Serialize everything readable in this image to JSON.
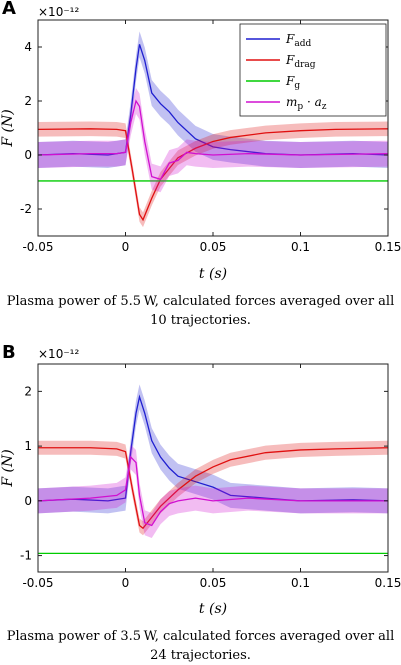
{
  "chart_data": [
    {
      "panel": "A",
      "type": "line",
      "xlabel": "t (s)",
      "ylabel": "F (N)",
      "y_multiplier": "×10⁻¹²",
      "xlim": [
        -0.05,
        0.15
      ],
      "ylim": [
        -3.0,
        5.0
      ],
      "x_ticks": [
        -0.05,
        0,
        0.05,
        0.1,
        0.15
      ],
      "x_tick_labels": [
        "-0.05",
        "0",
        "0.05",
        "0.1",
        "0.15"
      ],
      "y_ticks": [
        -2,
        0,
        2,
        4
      ],
      "y_tick_labels": [
        "-2",
        "0",
        "2",
        "4"
      ],
      "grid": false,
      "legend_position": "top-right",
      "caption": "Plasma power of 5.5 W, calculated forces averaged over all 10 trajectories.",
      "series": [
        {
          "name": "F_add",
          "color": "#1f1fd0",
          "x": [
            -0.05,
            -0.03,
            -0.01,
            0.0,
            0.003,
            0.006,
            0.008,
            0.011,
            0.015,
            0.02,
            0.025,
            0.03,
            0.035,
            0.04,
            0.05,
            0.06,
            0.08,
            0.1,
            0.13,
            0.15
          ],
          "y": [
            0.0,
            0.05,
            0.0,
            0.1,
            1.5,
            3.2,
            4.1,
            3.5,
            2.3,
            1.9,
            1.6,
            1.2,
            0.9,
            0.6,
            0.3,
            0.2,
            0.05,
            0.0,
            0.05,
            0.0
          ]
        },
        {
          "name": "F_drag",
          "color": "#e01010",
          "x": [
            -0.05,
            -0.02,
            -0.005,
            0.0,
            0.004,
            0.008,
            0.01,
            0.015,
            0.02,
            0.025,
            0.03,
            0.04,
            0.05,
            0.06,
            0.08,
            0.1,
            0.12,
            0.15
          ],
          "y": [
            0.95,
            0.97,
            0.95,
            0.9,
            -0.6,
            -2.2,
            -2.4,
            -1.6,
            -0.9,
            -0.5,
            -0.1,
            0.25,
            0.5,
            0.65,
            0.82,
            0.9,
            0.95,
            0.97
          ]
        },
        {
          "name": "F_g",
          "color": "#00cc00",
          "x": [
            -0.05,
            0.15
          ],
          "y": [
            -0.96,
            -0.96
          ]
        },
        {
          "name": "m_p · a_z",
          "color": "#d010d0",
          "x": [
            -0.05,
            -0.02,
            -0.005,
            0.0,
            0.003,
            0.006,
            0.008,
            0.011,
            0.015,
            0.02,
            0.025,
            0.03,
            0.035,
            0.04,
            0.05,
            0.07,
            0.1,
            0.15
          ],
          "y": [
            0.0,
            0.05,
            0.05,
            0.1,
            1.2,
            2.0,
            1.8,
            0.5,
            -0.8,
            -0.9,
            -0.3,
            -0.2,
            0.1,
            0.05,
            0.0,
            0.05,
            0.0,
            0.05
          ]
        }
      ]
    },
    {
      "panel": "B",
      "type": "line",
      "xlabel": "t (s)",
      "ylabel": "F (N)",
      "y_multiplier": "×10⁻¹²",
      "xlim": [
        -0.05,
        0.15
      ],
      "ylim": [
        -1.3,
        2.5
      ],
      "x_ticks": [
        -0.05,
        0,
        0.05,
        0.1,
        0.15
      ],
      "x_tick_labels": [
        "-0.05",
        "0",
        "0.05",
        "0.1",
        "0.15"
      ],
      "y_ticks": [
        -1,
        0,
        1,
        2
      ],
      "y_tick_labels": [
        "-1",
        "0",
        "1",
        "2"
      ],
      "grid": false,
      "caption": "Plasma power of 3.5 W, calculated forces averaged over all 24 trajectories.",
      "series": [
        {
          "name": "F_add",
          "color": "#1f1fd0",
          "x": [
            -0.05,
            -0.03,
            -0.01,
            0.0,
            0.003,
            0.006,
            0.008,
            0.011,
            0.015,
            0.02,
            0.025,
            0.03,
            0.04,
            0.05,
            0.06,
            0.08,
            0.1,
            0.13,
            0.15
          ],
          "y": [
            0.0,
            0.03,
            0.0,
            0.05,
            0.9,
            1.6,
            1.9,
            1.6,
            1.1,
            0.8,
            0.6,
            0.45,
            0.35,
            0.25,
            0.1,
            0.05,
            0.0,
            0.02,
            0.0
          ]
        },
        {
          "name": "F_drag",
          "color": "#e01010",
          "x": [
            -0.05,
            -0.02,
            -0.005,
            0.0,
            0.004,
            0.008,
            0.01,
            0.015,
            0.02,
            0.03,
            0.04,
            0.05,
            0.06,
            0.08,
            0.1,
            0.12,
            0.15
          ],
          "y": [
            0.97,
            0.97,
            0.95,
            0.9,
            0.2,
            -0.45,
            -0.5,
            -0.3,
            -0.1,
            0.2,
            0.45,
            0.62,
            0.75,
            0.88,
            0.93,
            0.95,
            0.97
          ]
        },
        {
          "name": "F_g",
          "color": "#00cc00",
          "x": [
            -0.05,
            0.15
          ],
          "y": [
            -0.96,
            -0.96
          ]
        },
        {
          "name": "m_p · a_z",
          "color": "#d010d0",
          "x": [
            -0.05,
            -0.02,
            -0.005,
            0.0,
            0.003,
            0.006,
            0.008,
            0.011,
            0.015,
            0.02,
            0.025,
            0.03,
            0.04,
            0.05,
            0.07,
            0.1,
            0.15
          ],
          "y": [
            0.0,
            0.05,
            0.1,
            0.2,
            0.8,
            0.7,
            0.1,
            -0.4,
            -0.45,
            -0.2,
            -0.05,
            0.0,
            0.05,
            0.0,
            0.05,
            0.0,
            0.0
          ]
        }
      ]
    }
  ],
  "legend_labels": [
    {
      "base": "F",
      "sub": "add"
    },
    {
      "base": "F",
      "sub": "drag"
    },
    {
      "base": "F",
      "sub": "g"
    },
    {
      "base": "m",
      "sub": "p",
      "mid": " · ",
      "base2": "a",
      "sub2": "z"
    }
  ],
  "panel_letters": [
    "A",
    "B"
  ]
}
